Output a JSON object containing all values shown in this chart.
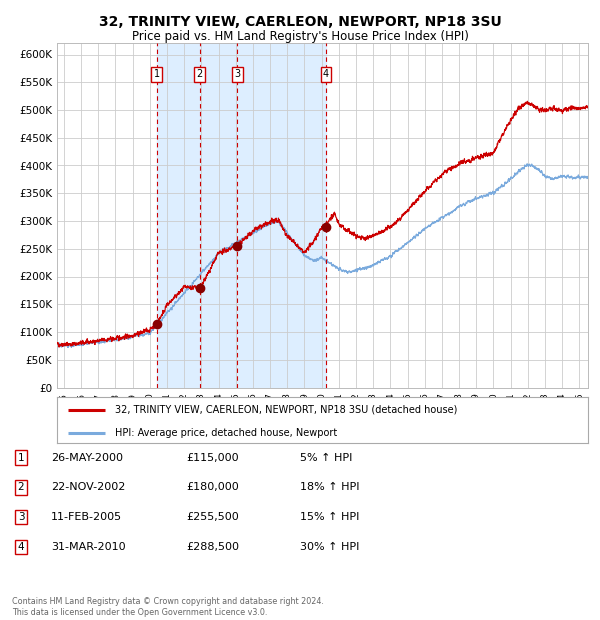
{
  "title": "32, TRINITY VIEW, CAERLEON, NEWPORT, NP18 3SU",
  "subtitle": "Price paid vs. HM Land Registry's House Price Index (HPI)",
  "background_color": "#ffffff",
  "plot_bg_color": "#ffffff",
  "grid_color": "#cccccc",
  "red_line_color": "#cc0000",
  "blue_line_color": "#7aaadd",
  "shade_color": "#ddeeff",
  "dashed_line_color": "#cc0000",
  "marker_color": "#880000",
  "legend_label_red": "32, TRINITY VIEW, CAERLEON, NEWPORT, NP18 3SU (detached house)",
  "legend_label_blue": "HPI: Average price, detached house, Newport",
  "footnote": "Contains HM Land Registry data © Crown copyright and database right 2024.\nThis data is licensed under the Open Government Licence v3.0.",
  "transactions": [
    {
      "num": 1,
      "date": "26-MAY-2000",
      "price": 115000,
      "hpi_pct": "5% ↑ HPI",
      "year_x": 2000.4
    },
    {
      "num": 2,
      "date": "22-NOV-2002",
      "price": 180000,
      "hpi_pct": "18% ↑ HPI",
      "year_x": 2002.9
    },
    {
      "num": 3,
      "date": "11-FEB-2005",
      "price": 255500,
      "hpi_pct": "15% ↑ HPI",
      "year_x": 2005.1
    },
    {
      "num": 4,
      "date": "31-MAR-2010",
      "price": 288500,
      "hpi_pct": "30% ↑ HPI",
      "year_x": 2010.25
    }
  ],
  "ylim": [
    0,
    620000
  ],
  "xlim_start": 1994.6,
  "xlim_end": 2025.5,
  "yticks": [
    0,
    50000,
    100000,
    150000,
    200000,
    250000,
    300000,
    350000,
    400000,
    450000,
    500000,
    550000,
    600000
  ],
  "ytick_labels": [
    "£0",
    "£50K",
    "£100K",
    "£150K",
    "£200K",
    "£250K",
    "£300K",
    "£350K",
    "£400K",
    "£450K",
    "£500K",
    "£550K",
    "£600K"
  ],
  "xticks": [
    1995,
    1996,
    1997,
    1998,
    1999,
    2000,
    2001,
    2002,
    2003,
    2004,
    2005,
    2006,
    2007,
    2008,
    2009,
    2010,
    2011,
    2012,
    2013,
    2014,
    2015,
    2016,
    2017,
    2018,
    2019,
    2020,
    2021,
    2022,
    2023,
    2024,
    2025
  ]
}
